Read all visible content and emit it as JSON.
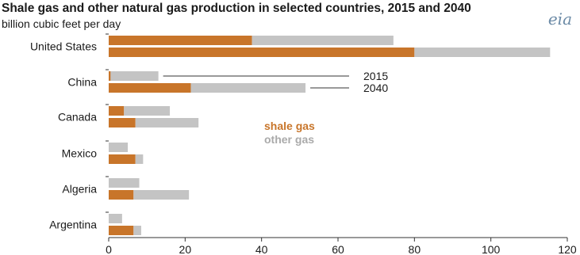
{
  "title": "Shale gas and other natural gas production in selected countries, 2015 and 2040",
  "subtitle": "billion cubic feet per day",
  "logo_text": "eia",
  "colors": {
    "shale": "#c8752a",
    "other": "#c4c4c4",
    "axis": "#333333"
  },
  "annotations": {
    "y2015": "2015",
    "y2040": "2040"
  },
  "legend": {
    "shale_label": "shale gas",
    "other_label": "other gas"
  },
  "chart_data": {
    "type": "bar",
    "orientation": "horizontal",
    "stacked": true,
    "xlim": [
      0,
      120
    ],
    "xticks": [
      0,
      20,
      40,
      60,
      80,
      100,
      120
    ],
    "categories": [
      "United States",
      "China",
      "Canada",
      "Mexico",
      "Algeria",
      "Argentina"
    ],
    "years": [
      "2015",
      "2040"
    ],
    "series": [
      {
        "name": "shale gas",
        "values_2015": [
          37.5,
          0.5,
          4.0,
          0.0,
          0.0,
          0.0
        ],
        "values_2040": [
          80.0,
          21.5,
          7.0,
          7.0,
          6.5,
          6.5
        ]
      },
      {
        "name": "other gas",
        "values_2015": [
          37.0,
          12.5,
          12.0,
          5.0,
          8.0,
          3.5
        ],
        "values_2040": [
          35.5,
          30.0,
          16.5,
          2.0,
          14.5,
          2.0
        ]
      }
    ]
  }
}
